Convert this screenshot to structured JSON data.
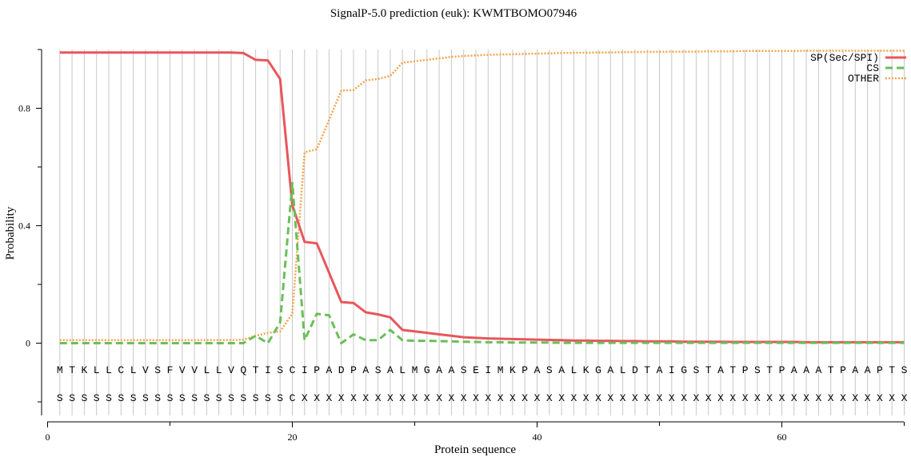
{
  "chart_data": {
    "type": "line",
    "title": "SignalP-5.0 prediction (euk):  KWMTBOMO07946",
    "xlabel": "Protein sequence",
    "ylabel": "Probability",
    "xlim": [
      0,
      70
    ],
    "ylim": [
      -0.25,
      1.02
    ],
    "x_ticks": [
      0,
      20,
      40,
      60
    ],
    "y_ticks": [
      0,
      0.4,
      0.8
    ],
    "grid": "vertical lines at each residue",
    "legend_position": "top-right",
    "sequence": [
      "M",
      "T",
      "K",
      "L",
      "L",
      "C",
      "L",
      "V",
      "S",
      "F",
      "V",
      "V",
      "L",
      "L",
      "V",
      "Q",
      "T",
      "I",
      "S",
      "C",
      "I",
      "P",
      "A",
      "D",
      "P",
      "A",
      "S",
      "A",
      "L",
      "M",
      "G",
      "A",
      "A",
      "S",
      "E",
      "I",
      "M",
      "K",
      "P",
      "A",
      "S",
      "A",
      "L",
      "K",
      "G",
      "A",
      "L",
      "D",
      "T",
      "A",
      "I",
      "G",
      "S",
      "T",
      "A",
      "T",
      "P",
      "S",
      "T",
      "P",
      "A",
      "A",
      "A",
      "T",
      "P",
      "A",
      "A",
      "P",
      "T",
      "S"
    ],
    "labels": [
      "S",
      "S",
      "S",
      "S",
      "S",
      "S",
      "S",
      "S",
      "S",
      "S",
      "S",
      "S",
      "S",
      "S",
      "S",
      "S",
      "S",
      "S",
      "S",
      "C",
      "X",
      "X",
      "X",
      "X",
      "X",
      "X",
      "X",
      "X",
      "X",
      "X",
      "X",
      "X",
      "X",
      "X",
      "X",
      "X",
      "X",
      "X",
      "X",
      "X",
      "X",
      "X",
      "X",
      "X",
      "X",
      "X",
      "X",
      "X",
      "X",
      "X",
      "X",
      "X",
      "X",
      "X",
      "X",
      "X",
      "X",
      "X",
      "X",
      "X",
      "X",
      "X",
      "X",
      "X",
      "X",
      "X",
      "X",
      "X",
      "X",
      "X"
    ],
    "series": [
      {
        "name": "SP(Sec/SPI)",
        "color": "#e8565c",
        "style": "solid",
        "values": [
          0.99,
          0.99,
          0.99,
          0.99,
          0.99,
          0.99,
          0.99,
          0.99,
          0.99,
          0.99,
          0.99,
          0.99,
          0.99,
          0.99,
          0.99,
          0.988,
          0.965,
          0.963,
          0.9,
          0.47,
          0.345,
          0.34,
          0.24,
          0.14,
          0.137,
          0.105,
          0.098,
          0.088,
          0.045,
          0.04,
          0.035,
          0.03,
          0.025,
          0.02,
          0.018,
          0.016,
          0.015,
          0.014,
          0.013,
          0.012,
          0.011,
          0.01,
          0.009,
          0.009,
          0.008,
          0.008,
          0.007,
          0.007,
          0.006,
          0.006,
          0.006,
          0.005,
          0.005,
          0.005,
          0.005,
          0.004,
          0.004,
          0.004,
          0.004,
          0.004,
          0.004,
          0.003,
          0.003,
          0.003,
          0.003,
          0.003,
          0.003,
          0.003,
          0.003,
          0.003
        ]
      },
      {
        "name": "CS",
        "color": "#6abf58",
        "style": "dashed",
        "values": [
          0.0,
          0.0,
          0.0,
          0.0,
          0.0,
          0.0,
          0.0,
          0.0,
          0.0,
          0.0,
          0.0,
          0.0,
          0.0,
          0.0,
          0.0,
          0.0,
          0.025,
          0.0,
          0.07,
          0.545,
          0.01,
          0.1,
          0.095,
          0.0,
          0.03,
          0.01,
          0.01,
          0.045,
          0.01,
          0.008,
          0.008,
          0.007,
          0.006,
          0.005,
          0.004,
          0.003,
          0.003,
          0.002,
          0.002,
          0.002,
          0.002,
          0.001,
          0.001,
          0.001,
          0.001,
          0.001,
          0.001,
          0.001,
          0.001,
          0.001,
          0.001,
          0.001,
          0.001,
          0.001,
          0.001,
          0.001,
          0.001,
          0.001,
          0.001,
          0.001,
          0.001,
          0.001,
          0.001,
          0.001,
          0.001,
          0.001,
          0.001,
          0.001,
          0.001,
          0.001
        ]
      },
      {
        "name": "OTHER",
        "color": "#f5a34a",
        "style": "dotted",
        "values": [
          0.01,
          0.01,
          0.01,
          0.01,
          0.01,
          0.01,
          0.01,
          0.01,
          0.01,
          0.01,
          0.01,
          0.01,
          0.01,
          0.01,
          0.01,
          0.012,
          0.025,
          0.035,
          0.04,
          0.1,
          0.65,
          0.66,
          0.76,
          0.86,
          0.862,
          0.895,
          0.9,
          0.91,
          0.955,
          0.96,
          0.965,
          0.97,
          0.975,
          0.978,
          0.98,
          0.982,
          0.983,
          0.984,
          0.985,
          0.986,
          0.987,
          0.988,
          0.989,
          0.989,
          0.99,
          0.99,
          0.991,
          0.991,
          0.992,
          0.992,
          0.993,
          0.993,
          0.993,
          0.994,
          0.994,
          0.994,
          0.995,
          0.995,
          0.995,
          0.995,
          0.995,
          0.996,
          0.996,
          0.996,
          0.996,
          0.996,
          0.996,
          0.996,
          0.996,
          0.996
        ]
      }
    ]
  }
}
